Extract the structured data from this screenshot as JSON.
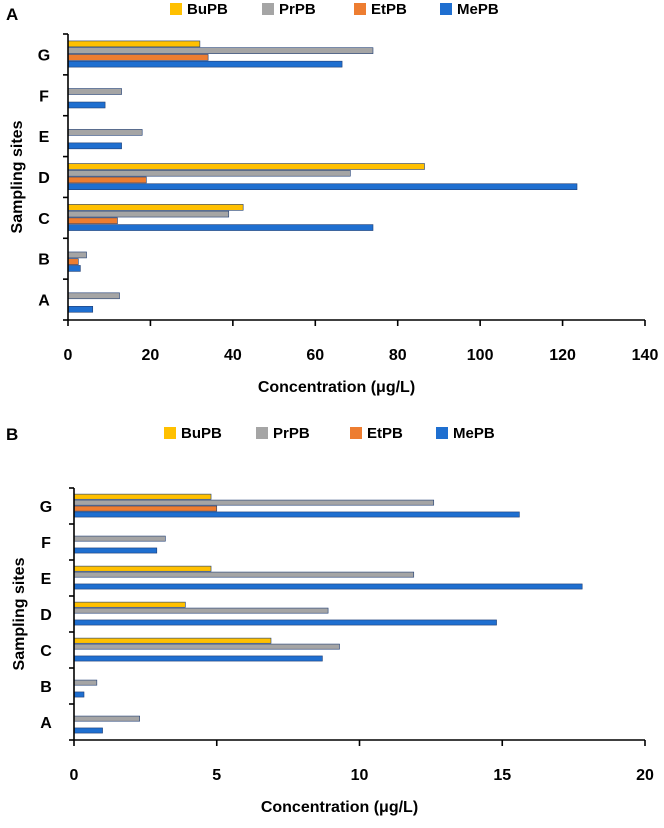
{
  "figure": {
    "panels": [
      "A",
      "B"
    ]
  },
  "chart_data": [
    {
      "panel_label": "A",
      "type": "bar",
      "orientation": "horizontal",
      "categories": [
        "A",
        "B",
        "C",
        "D",
        "E",
        "F",
        "G"
      ],
      "series": [
        {
          "name": "BuPB",
          "color": "#ffc000",
          "values": [
            0,
            0,
            42.5,
            86.5,
            0,
            0,
            32
          ]
        },
        {
          "name": "PrPB",
          "color": "#a5a5a5",
          "values": [
            12.5,
            4.5,
            39,
            68.5,
            18,
            13,
            74
          ]
        },
        {
          "name": "EtPB",
          "color": "#ed7d31",
          "values": [
            0,
            2.5,
            12,
            19,
            0,
            0,
            34
          ]
        },
        {
          "name": "MePB",
          "color": "#1f6fd0",
          "values": [
            6,
            3,
            74,
            123.5,
            13,
            9,
            66.5
          ]
        }
      ],
      "legend_order": [
        "BuPB",
        "PrPB",
        "EtPB",
        "MePB"
      ],
      "xlim": [
        0,
        140
      ],
      "xticks": [
        0,
        20,
        40,
        60,
        80,
        100,
        120,
        140
      ],
      "xlabel": "Concentration (μg/L)",
      "ylabel": "Sampling sites",
      "legend_position": "top",
      "grid": false
    },
    {
      "panel_label": "B",
      "type": "bar",
      "orientation": "horizontal",
      "categories": [
        "A",
        "B",
        "C",
        "D",
        "E",
        "F",
        "G"
      ],
      "series": [
        {
          "name": "BuPB",
          "color": "#ffc000",
          "values": [
            0,
            0,
            6.9,
            3.9,
            4.8,
            0,
            4.8
          ]
        },
        {
          "name": "PrPB",
          "color": "#a5a5a5",
          "values": [
            2.3,
            0.8,
            9.3,
            8.9,
            11.9,
            3.2,
            12.6
          ]
        },
        {
          "name": "EtPB",
          "color": "#ed7d31",
          "values": [
            0,
            0,
            0,
            0,
            0,
            0,
            5
          ]
        },
        {
          "name": "MePB",
          "color": "#1f6fd0",
          "values": [
            1.0,
            0.35,
            8.7,
            14.8,
            17.8,
            2.9,
            15.6
          ]
        }
      ],
      "legend_order": [
        "BuPB",
        "PrPB",
        "EtPB",
        "MePB"
      ],
      "xlim": [
        0,
        20
      ],
      "xticks": [
        0,
        5,
        10,
        15,
        20
      ],
      "xlabel": "Concentration (μg/L)",
      "ylabel": "Sampling sites",
      "legend_position": "top",
      "grid": false
    }
  ]
}
